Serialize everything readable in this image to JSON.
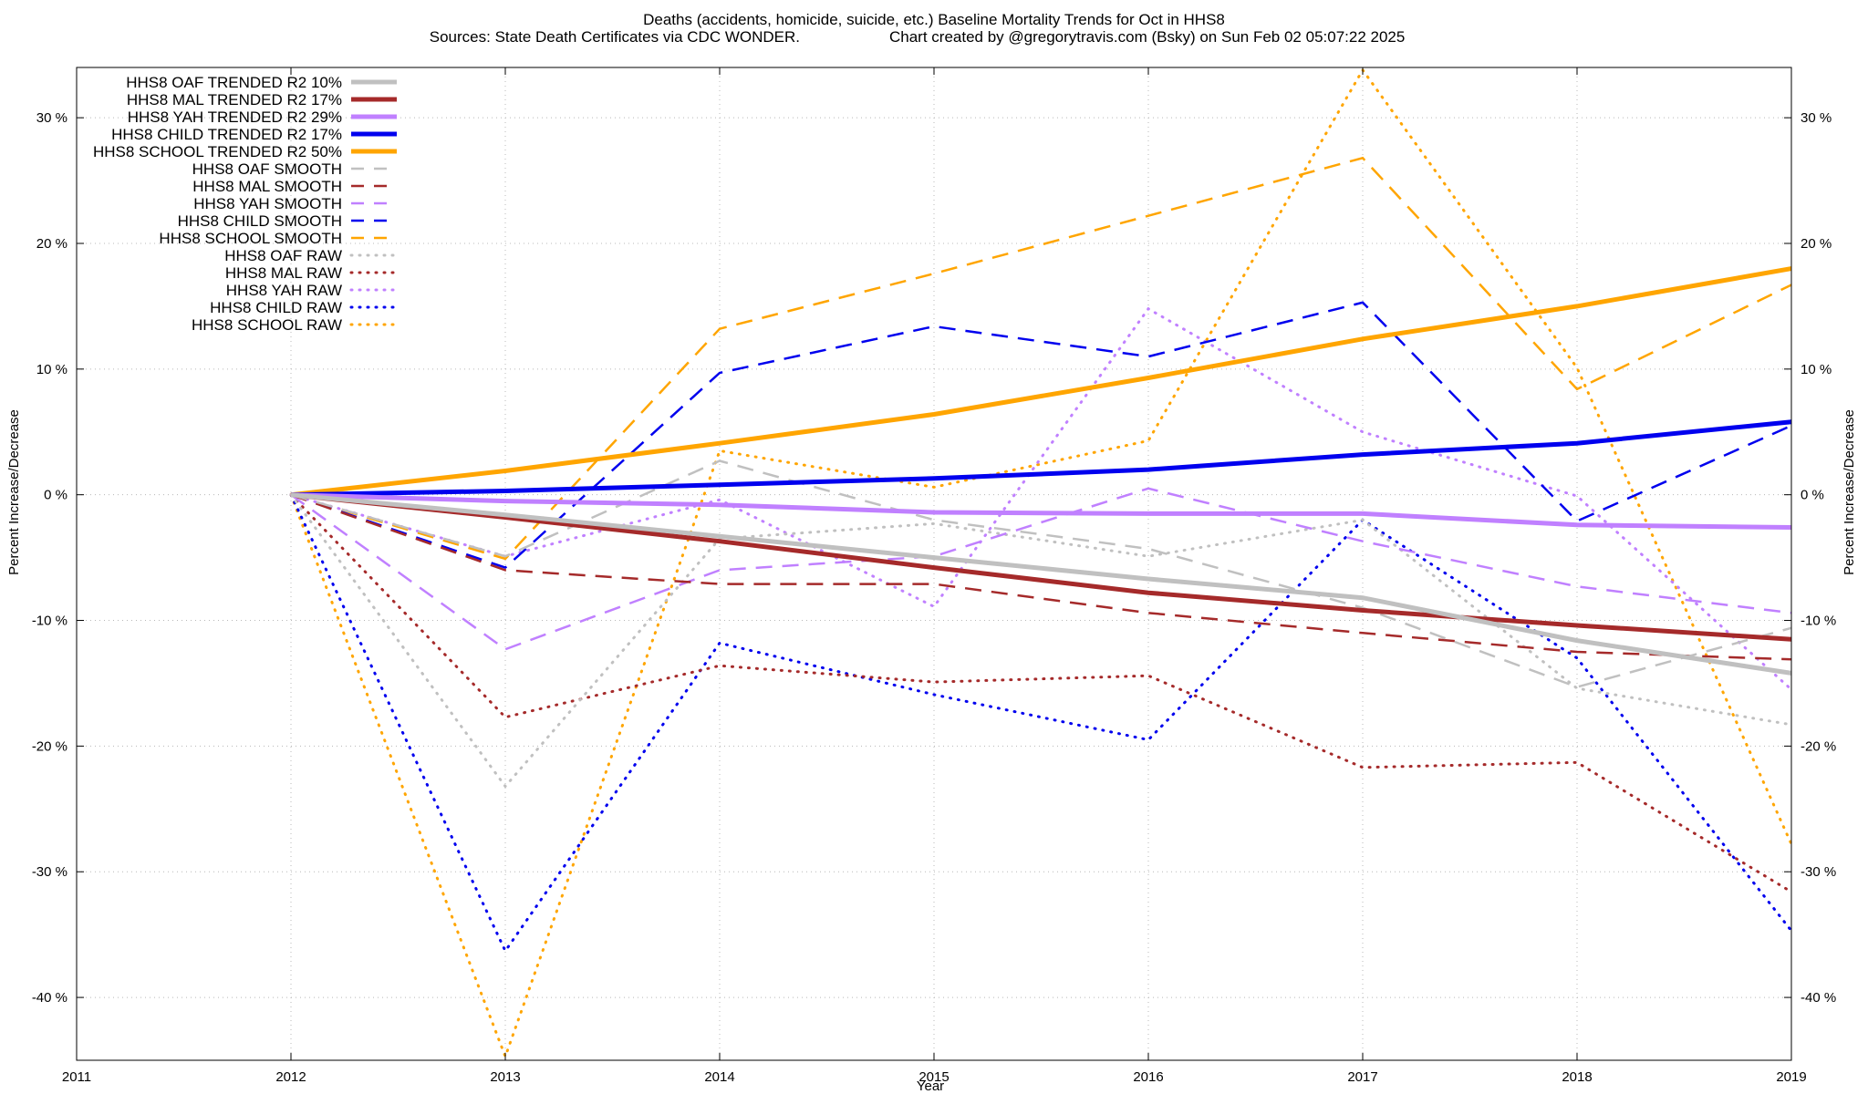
{
  "chart_data": {
    "type": "line",
    "title": "Deaths (accidents, homicide, suicide, etc.)  Baseline Mortality Trends for Oct in HHS8",
    "subtitle_left": "Sources: State Death Certificates via CDC WONDER.",
    "subtitle_right": "Chart created by @gregorytravis.com (Bsky) on Sun Feb 02 05:07:22 2025",
    "xlabel": "Year",
    "ylabel": "Percent Increase/Decrease",
    "xlim": [
      2011,
      2019
    ],
    "ylim": [
      -45,
      34
    ],
    "x_ticks": [
      "2011",
      "2012",
      "2013",
      "2014",
      "2015",
      "2016",
      "2017",
      "2018",
      "2019"
    ],
    "y_ticks": [
      {
        "value": 30,
        "label": "30 %"
      },
      {
        "value": 20,
        "label": "20 %"
      },
      {
        "value": 10,
        "label": "10 %"
      },
      {
        "value": 0,
        "label": "0 %"
      },
      {
        "value": -10,
        "label": "-10 %"
      },
      {
        "value": -20,
        "label": "-20 %"
      },
      {
        "value": -30,
        "label": "-30 %"
      },
      {
        "value": -40,
        "label": "-40 %"
      }
    ],
    "grid": true,
    "legend_position": "top-left",
    "x": [
      2012,
      2013,
      2014,
      2015,
      2016,
      2017,
      2018,
      2019
    ],
    "series": [
      {
        "name": "HHS8 OAF TRENDED R2  10%",
        "style": "solid",
        "color": "#c0c0c0",
        "values": [
          0,
          -1.6,
          -3.3,
          -5.0,
          -6.7,
          -8.2,
          -11.6,
          -14.2
        ]
      },
      {
        "name": "HHS8 MAL TRENDED R2  17%",
        "style": "solid",
        "color": "#a52a2a",
        "values": [
          0,
          -1.8,
          -3.7,
          -5.8,
          -7.8,
          -9.2,
          -10.4,
          -11.5
        ]
      },
      {
        "name": "HHS8 YAH TRENDED R2  29%",
        "style": "solid",
        "color": "#c080ff",
        "values": [
          0,
          -0.5,
          -0.8,
          -1.4,
          -1.5,
          -1.5,
          -2.4,
          -2.6
        ]
      },
      {
        "name": "HHS8 CHILD TRENDED R2  17%",
        "style": "solid",
        "color": "#0000ee",
        "values": [
          0,
          0.3,
          0.8,
          1.3,
          2.0,
          3.2,
          4.1,
          5.8
        ]
      },
      {
        "name": "HHS8 SCHOOL TRENDED R2  50%",
        "style": "solid",
        "color": "#ffa500",
        "values": [
          0,
          1.9,
          4.1,
          6.4,
          9.3,
          12.4,
          15.0,
          18.0
        ]
      },
      {
        "name": "HHS8 OAF SMOOTH",
        "style": "dashed",
        "color": "#c0c0c0",
        "values": [
          0,
          -4.9,
          2.7,
          -2.0,
          -4.3,
          -9.0,
          -15.3,
          -10.6
        ]
      },
      {
        "name": "HHS8 MAL SMOOTH",
        "style": "dashed",
        "color": "#a52a2a",
        "values": [
          0,
          -6.0,
          -7.1,
          -7.1,
          -9.4,
          -11.0,
          -12.5,
          -13.1
        ]
      },
      {
        "name": "HHS8 YAH SMOOTH",
        "style": "dashed",
        "color": "#c080ff",
        "values": [
          0,
          -12.3,
          -6.0,
          -4.9,
          0.5,
          -3.7,
          -7.3,
          -9.4
        ]
      },
      {
        "name": "HHS8 CHILD SMOOTH",
        "style": "dashed",
        "color": "#0000ee",
        "values": [
          0,
          -5.8,
          9.7,
          13.4,
          11.0,
          15.3,
          -2.1,
          5.5
        ]
      },
      {
        "name": "HHS8 SCHOOL SMOOTH",
        "style": "dashed",
        "color": "#ffa500",
        "values": [
          0,
          -5.1,
          13.2,
          17.6,
          22.2,
          26.8,
          8.4,
          16.7
        ]
      },
      {
        "name": "HHS8 OAF RAW",
        "style": "dotted",
        "color": "#c0c0c0",
        "values": [
          0,
          -23.2,
          -3.5,
          -2.3,
          -4.9,
          -2.0,
          -15.4,
          -18.3
        ]
      },
      {
        "name": "HHS8 MAL RAW",
        "style": "dotted",
        "color": "#a52a2a",
        "values": [
          0,
          -17.7,
          -13.6,
          -14.9,
          -14.4,
          -21.7,
          -21.3,
          -31.6
        ]
      },
      {
        "name": "HHS8 YAH RAW",
        "style": "dotted",
        "color": "#c080ff",
        "values": [
          0,
          -4.9,
          -0.4,
          -8.9,
          14.8,
          5.0,
          -0.1,
          -15.5
        ]
      },
      {
        "name": "HHS8 CHILD RAW",
        "style": "dotted",
        "color": "#0000ee",
        "values": [
          0,
          -36.3,
          -11.8,
          -15.9,
          -19.5,
          -2.0,
          -13.0,
          -34.7
        ]
      },
      {
        "name": "HHS8 SCHOOL RAW",
        "style": "dotted",
        "color": "#ffa500",
        "values": [
          0,
          -44.7,
          3.5,
          0.6,
          4.3,
          33.8,
          10.1,
          -27.8
        ]
      }
    ]
  }
}
